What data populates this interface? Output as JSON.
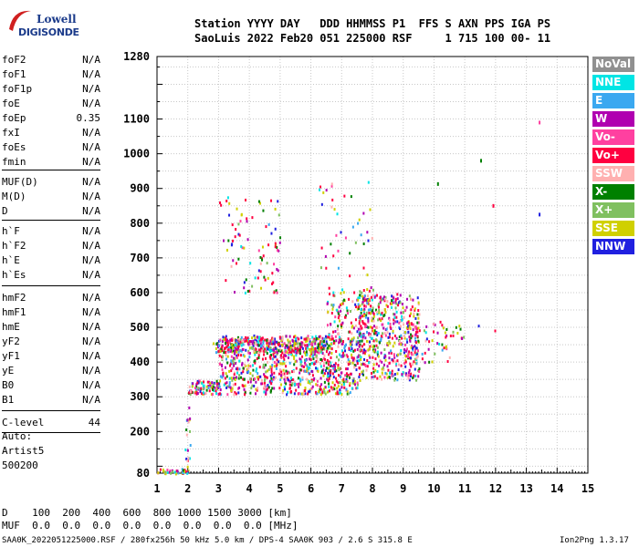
{
  "logo": {
    "line1": "Lowell",
    "line2": "DIGISONDE"
  },
  "header": {
    "line1": "Station YYYY DAY   DDD HHMMSS P1  FFS S AXN PPS IGA PS",
    "line2": "SaoLuis 2022 Feb20 051 225000 RSF     1 715 100 00- 11"
  },
  "params": [
    {
      "name": "foF2",
      "value": "N/A"
    },
    {
      "name": "foF1",
      "value": "N/A"
    },
    {
      "name": "foF1p",
      "value": "N/A"
    },
    {
      "name": "foE",
      "value": "N/A"
    },
    {
      "name": "foEp",
      "value": "0.35"
    },
    {
      "name": "fxI",
      "value": "N/A"
    },
    {
      "name": "foEs",
      "value": "N/A"
    },
    {
      "name": "fmin",
      "value": "N/A"
    },
    {
      "name": "MUF(D)",
      "value": "N/A"
    },
    {
      "name": "M(D)",
      "value": "N/A"
    },
    {
      "name": "D",
      "value": "N/A"
    },
    {
      "name": "h`F",
      "value": "N/A"
    },
    {
      "name": "h`F2",
      "value": "N/A"
    },
    {
      "name": "h`E",
      "value": "N/A"
    },
    {
      "name": "h`Es",
      "value": "N/A"
    },
    {
      "name": "hmF2",
      "value": "N/A"
    },
    {
      "name": "hmF1",
      "value": "N/A"
    },
    {
      "name": "hmE",
      "value": "N/A"
    },
    {
      "name": "yF2",
      "value": "N/A"
    },
    {
      "name": "yF1",
      "value": "N/A"
    },
    {
      "name": "yE",
      "value": "N/A"
    },
    {
      "name": "B0",
      "value": "N/A"
    },
    {
      "name": "B1",
      "value": "N/A"
    },
    {
      "name": "C-level",
      "value": "44"
    }
  ],
  "auto": {
    "line1": "Auto:",
    "line2": "Artist5",
    "line3": "500200"
  },
  "legend": [
    {
      "label": "NoVal",
      "color": "#909090"
    },
    {
      "label": "NNE",
      "color": "#00e5e5"
    },
    {
      "label": "E",
      "color": "#3aa8f0"
    },
    {
      "label": "W",
      "color": "#b000b0"
    },
    {
      "label": "Vo-",
      "color": "#ff40a0"
    },
    {
      "label": "Vo+",
      "color": "#ff0040"
    },
    {
      "label": "SSW",
      "color": "#ffb0b0"
    },
    {
      "label": "X-",
      "color": "#008000"
    },
    {
      "label": "X+",
      "color": "#80c060"
    },
    {
      "label": "SSE",
      "color": "#d0d000"
    },
    {
      "label": "NNW",
      "color": "#2020e0"
    }
  ],
  "bottom": {
    "line1": "D    100  200  400  600  800 1000 1500 3000 [km]",
    "line2": "MUF  0.0  0.0  0.0  0.0  0.0  0.0  0.0  0.0 [MHz]"
  },
  "footer": {
    "left": "SAA0K_2022051225000.RSF / 280fx256h 50 kHz 5.0 km / DPS-4 SAA0K 903 / 2.6 S 315.8 E",
    "right": "Ion2Png 1.3.17"
  },
  "chart_data": {
    "type": "scatter",
    "title": "",
    "xlabel": "",
    "ylabel": "",
    "xlim": [
      1,
      15
    ],
    "ylim": [
      80,
      1280
    ],
    "x_ticks": [
      1,
      2,
      3,
      4,
      5,
      6,
      7,
      8,
      9,
      10,
      11,
      12,
      13,
      14,
      15
    ],
    "y_ticks_labeled": [
      80,
      200,
      300,
      400,
      500,
      600,
      700,
      800,
      900,
      1000,
      1100,
      1280
    ],
    "grid": true,
    "clusters": [
      {
        "xmin": 1.0,
        "xmax": 2.0,
        "ymin": 80,
        "ymax": 95,
        "density": 40
      },
      {
        "xmin": 1.9,
        "xmax": 2.1,
        "ymin": 100,
        "ymax": 300,
        "density": 18
      },
      {
        "xmin": 2.0,
        "xmax": 3.0,
        "ymin": 310,
        "ymax": 350,
        "density": 90
      },
      {
        "xmin": 3.0,
        "xmax": 7.5,
        "ymin": 310,
        "ymax": 480,
        "density": 900
      },
      {
        "xmin": 2.8,
        "xmax": 6.5,
        "ymin": 430,
        "ymax": 470,
        "density": 260
      },
      {
        "xmin": 6.5,
        "xmax": 8.0,
        "ymin": 480,
        "ymax": 620,
        "density": 120
      },
      {
        "xmin": 7.5,
        "xmax": 9.5,
        "ymin": 350,
        "ymax": 600,
        "density": 500
      },
      {
        "xmin": 9.0,
        "xmax": 10.5,
        "ymin": 400,
        "ymax": 520,
        "density": 60
      },
      {
        "xmin": 10.5,
        "xmax": 12.0,
        "ymin": 470,
        "ymax": 510,
        "density": 12
      },
      {
        "xmin": 3.0,
        "xmax": 5.0,
        "ymin": 600,
        "ymax": 880,
        "density": 90
      },
      {
        "xmin": 6.2,
        "xmax": 8.0,
        "ymin": 650,
        "ymax": 930,
        "density": 40
      }
    ],
    "isolated_points": [
      {
        "x": 13.4,
        "y": 1095,
        "series": "Vo-"
      },
      {
        "x": 11.5,
        "y": 985,
        "series": "X-"
      },
      {
        "x": 10.1,
        "y": 918,
        "series": "X-"
      },
      {
        "x": 11.9,
        "y": 855,
        "series": "Vo+"
      },
      {
        "x": 13.4,
        "y": 830,
        "series": "NNW"
      }
    ]
  }
}
